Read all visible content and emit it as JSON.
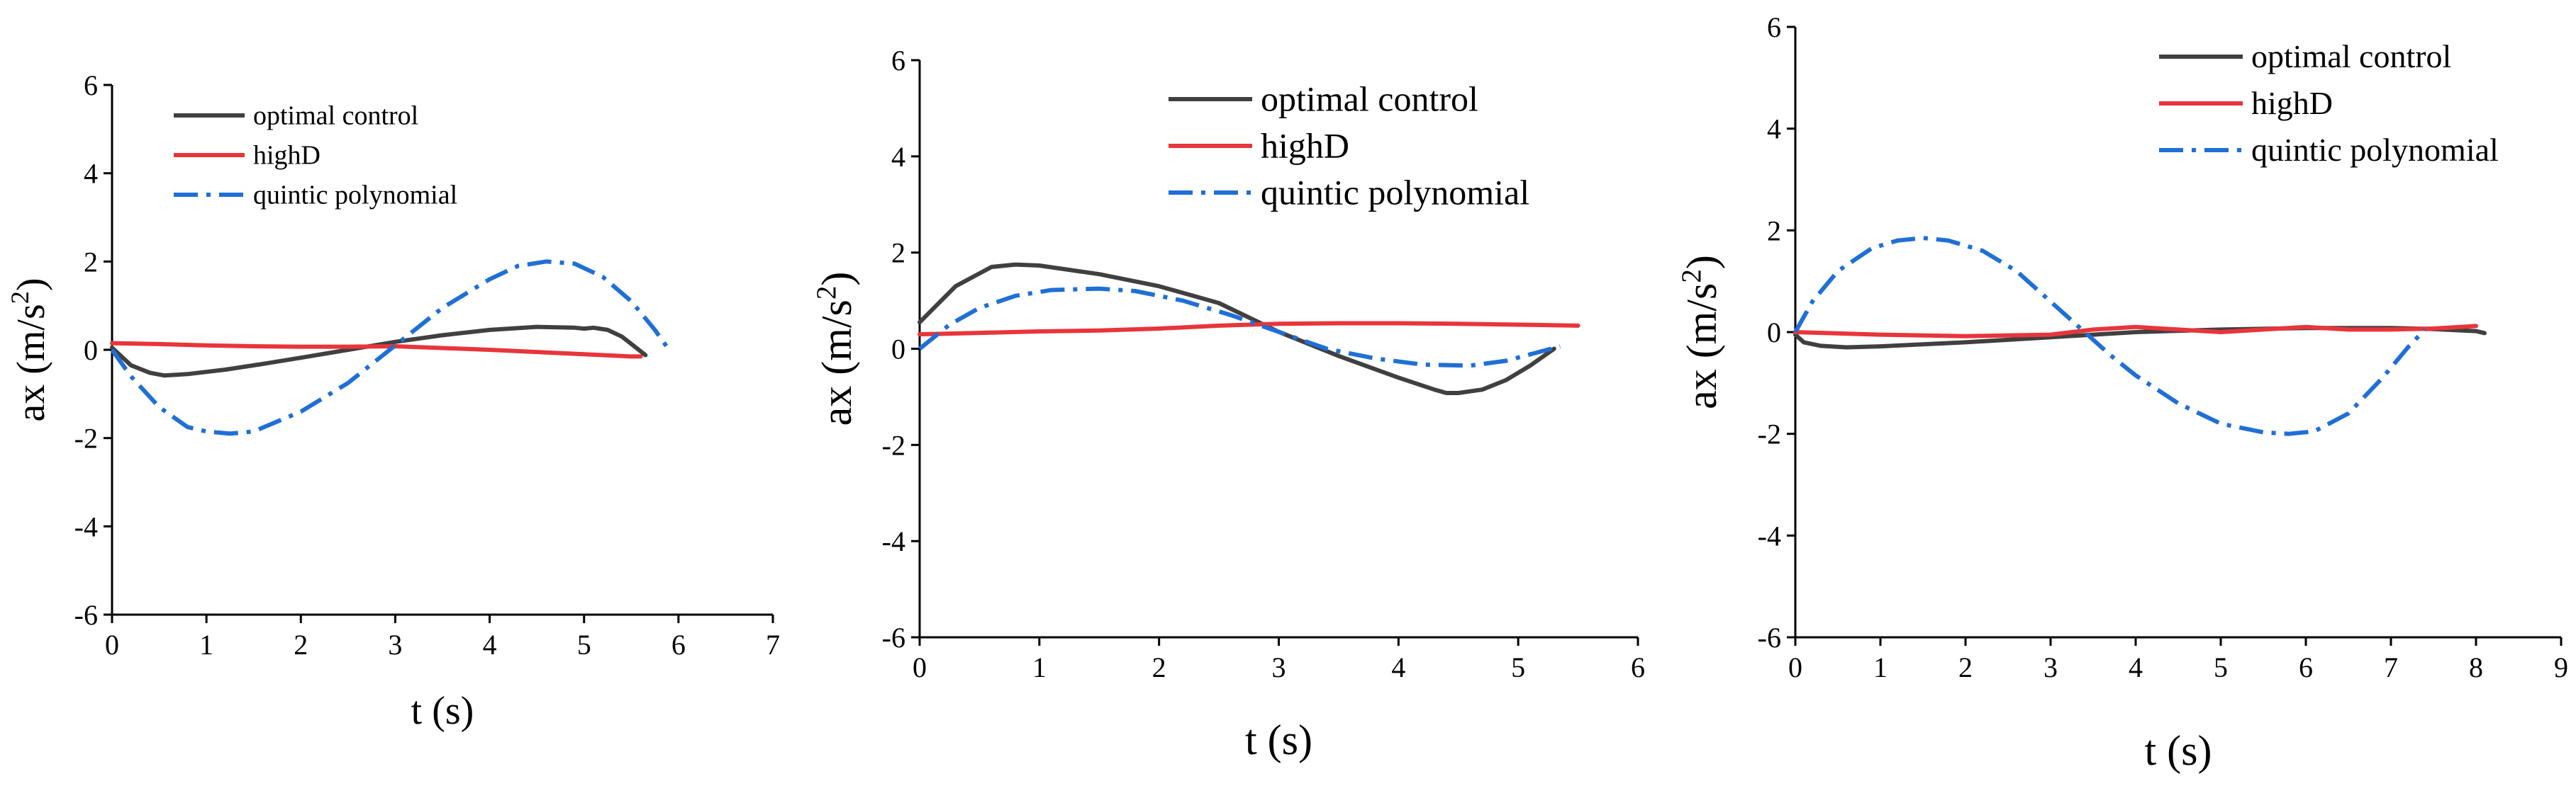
{
  "chart_data": [
    {
      "type": "line",
      "title": "",
      "xlabel": "t (s)",
      "ylabel": "ax (m/s2)",
      "ylabel_main": "ax (m/s",
      "ylabel_sup": "2",
      "ylabel_close": ")",
      "xlim": [
        0,
        7
      ],
      "ylim": [
        -6,
        6
      ],
      "xticks": [
        0,
        1,
        2,
        3,
        4,
        5,
        6,
        7
      ],
      "yticks": [
        -6,
        -4,
        -2,
        0,
        2,
        4,
        6
      ],
      "xtick_labels": [
        "0",
        "1",
        "2",
        "3",
        "4",
        "5",
        "6",
        "7"
      ],
      "ytick_labels": [
        "-6",
        "-4",
        "-2",
        "0",
        "2",
        "4",
        "6"
      ],
      "grid": false,
      "legend_position": "top-left",
      "series": [
        {
          "name": "optimal control",
          "color": "#404040",
          "dash": "solid",
          "x": [
            0,
            0.2,
            0.4,
            0.55,
            0.8,
            1.2,
            1.6,
            2.0,
            2.5,
            3.0,
            3.5,
            4.0,
            4.5,
            4.9,
            5.0,
            5.1,
            5.25,
            5.4,
            5.55,
            5.65
          ],
          "y": [
            0.05,
            -0.35,
            -0.52,
            -0.58,
            -0.55,
            -0.45,
            -0.32,
            -0.18,
            0.0,
            0.18,
            0.33,
            0.45,
            0.52,
            0.5,
            0.48,
            0.5,
            0.45,
            0.3,
            0.05,
            -0.12
          ]
        },
        {
          "name": "highD",
          "color": "#e8353b",
          "dash": "solid",
          "x": [
            0,
            0.5,
            1,
            1.5,
            2,
            2.5,
            3,
            3.5,
            4,
            4.5,
            5,
            5.5,
            5.6
          ],
          "y": [
            0.15,
            0.13,
            0.1,
            0.08,
            0.07,
            0.07,
            0.08,
            0.04,
            0.0,
            -0.05,
            -0.1,
            -0.15,
            -0.15
          ]
        },
        {
          "name": "quintic polynomial",
          "color": "#1f6fd6",
          "dash": "dashdot",
          "x": [
            0,
            0.2,
            0.5,
            0.8,
            1.0,
            1.25,
            1.5,
            2.0,
            2.5,
            3.0,
            3.5,
            4.0,
            4.3,
            4.6,
            4.9,
            5.2,
            5.5,
            5.75,
            5.9
          ],
          "y": [
            0,
            -0.6,
            -1.3,
            -1.75,
            -1.85,
            -1.9,
            -1.85,
            -1.4,
            -0.75,
            0.1,
            0.95,
            1.6,
            1.9,
            2.0,
            1.95,
            1.65,
            1.1,
            0.45,
            0.0
          ]
        }
      ]
    },
    {
      "type": "line",
      "title": "",
      "xlabel": "t (s)",
      "ylabel": "ax (m/s2)",
      "ylabel_main": "ax (m/s",
      "ylabel_sup": "2",
      "ylabel_close": ")",
      "xlim": [
        0,
        6
      ],
      "ylim": [
        -6,
        6
      ],
      "xticks": [
        0,
        1,
        2,
        3,
        4,
        5,
        6
      ],
      "yticks": [
        -6,
        -4,
        -2,
        0,
        2,
        4,
        6
      ],
      "xtick_labels": [
        "0",
        "1",
        "2",
        "3",
        "4",
        "5",
        "6"
      ],
      "ytick_labels": [
        "-6",
        "-4",
        "-2",
        "0",
        "2",
        "4",
        "6"
      ],
      "grid": false,
      "legend_position": "top-right",
      "series": [
        {
          "name": "optimal control",
          "color": "#404040",
          "dash": "solid",
          "x": [
            0,
            0.3,
            0.6,
            0.8,
            1.0,
            1.5,
            2.0,
            2.5,
            3.0,
            3.5,
            4.0,
            4.3,
            4.4,
            4.5,
            4.7,
            4.9,
            5.1,
            5.3
          ],
          "y": [
            0.55,
            1.3,
            1.7,
            1.75,
            1.73,
            1.55,
            1.3,
            0.95,
            0.35,
            -0.15,
            -0.6,
            -0.85,
            -0.92,
            -0.92,
            -0.85,
            -0.65,
            -0.35,
            0.0
          ]
        },
        {
          "name": "highD",
          "color": "#e8353b",
          "dash": "solid",
          "x": [
            0,
            0.5,
            1.0,
            1.5,
            2.0,
            2.5,
            3.0,
            3.5,
            4.0,
            4.5,
            5.0,
            5.5
          ],
          "y": [
            0.3,
            0.33,
            0.36,
            0.38,
            0.42,
            0.48,
            0.52,
            0.53,
            0.53,
            0.52,
            0.5,
            0.48
          ]
        },
        {
          "name": "quintic polynomial",
          "color": "#1f6fd6",
          "dash": "dashdot",
          "x": [
            0,
            0.25,
            0.5,
            0.8,
            1.1,
            1.5,
            1.8,
            2.2,
            2.6,
            3.0,
            3.4,
            3.8,
            4.2,
            4.6,
            4.9,
            5.2,
            5.35
          ],
          "y": [
            0.0,
            0.5,
            0.85,
            1.1,
            1.22,
            1.25,
            1.2,
            1.0,
            0.7,
            0.35,
            0.0,
            -0.2,
            -0.33,
            -0.35,
            -0.25,
            -0.05,
            0.05
          ]
        }
      ]
    },
    {
      "type": "line",
      "title": "",
      "xlabel": "t (s)",
      "ylabel": "ax (m/s2)",
      "ylabel_main": "ax (m/s",
      "ylabel_sup": "2",
      "ylabel_close": ")",
      "xlim": [
        0,
        9
      ],
      "ylim": [
        -6,
        6
      ],
      "xticks": [
        0,
        1,
        2,
        3,
        4,
        5,
        6,
        7,
        8,
        9
      ],
      "yticks": [
        -6,
        -4,
        -2,
        0,
        2,
        4,
        6
      ],
      "xtick_labels": [
        "0",
        "1",
        "2",
        "3",
        "4",
        "5",
        "6",
        "7",
        "8",
        "9"
      ],
      "ytick_labels": [
        "-6",
        "-4",
        "-2",
        "0",
        "2",
        "4",
        "6"
      ],
      "grid": false,
      "legend_position": "top-right",
      "series": [
        {
          "name": "optimal control",
          "color": "#404040",
          "dash": "solid",
          "x": [
            0,
            0.1,
            0.3,
            0.6,
            1.0,
            2.0,
            3.0,
            4.0,
            5.0,
            6.0,
            7.0,
            7.5,
            8.0,
            8.1
          ],
          "y": [
            -0.05,
            -0.2,
            -0.27,
            -0.3,
            -0.28,
            -0.2,
            -0.1,
            0.0,
            0.05,
            0.08,
            0.08,
            0.06,
            0.02,
            -0.02
          ]
        },
        {
          "name": "highD",
          "color": "#e8353b",
          "dash": "solid",
          "x": [
            0,
            1,
            2,
            3,
            3.5,
            4.0,
            4.5,
            5.0,
            5.5,
            6.0,
            6.5,
            7.0,
            7.5,
            8.0
          ],
          "y": [
            0.0,
            -0.05,
            -0.08,
            -0.05,
            0.05,
            0.1,
            0.05,
            0.0,
            0.05,
            0.1,
            0.05,
            0.05,
            0.07,
            0.12
          ]
        },
        {
          "name": "quintic polynomial",
          "color": "#1f6fd6",
          "dash": "dashdot",
          "x": [
            0,
            0.2,
            0.5,
            0.9,
            1.2,
            1.5,
            1.8,
            2.2,
            2.6,
            3.0,
            3.3,
            3.7,
            4.0,
            4.5,
            5.0,
            5.5,
            5.8,
            6.1,
            6.5,
            6.9,
            7.2,
            7.4
          ],
          "y": [
            0.0,
            0.6,
            1.2,
            1.65,
            1.8,
            1.85,
            1.8,
            1.6,
            1.2,
            0.6,
            0.15,
            -0.45,
            -0.85,
            -1.4,
            -1.8,
            -1.97,
            -2.0,
            -1.95,
            -1.6,
            -0.9,
            -0.3,
            0.05
          ]
        }
      ]
    }
  ]
}
